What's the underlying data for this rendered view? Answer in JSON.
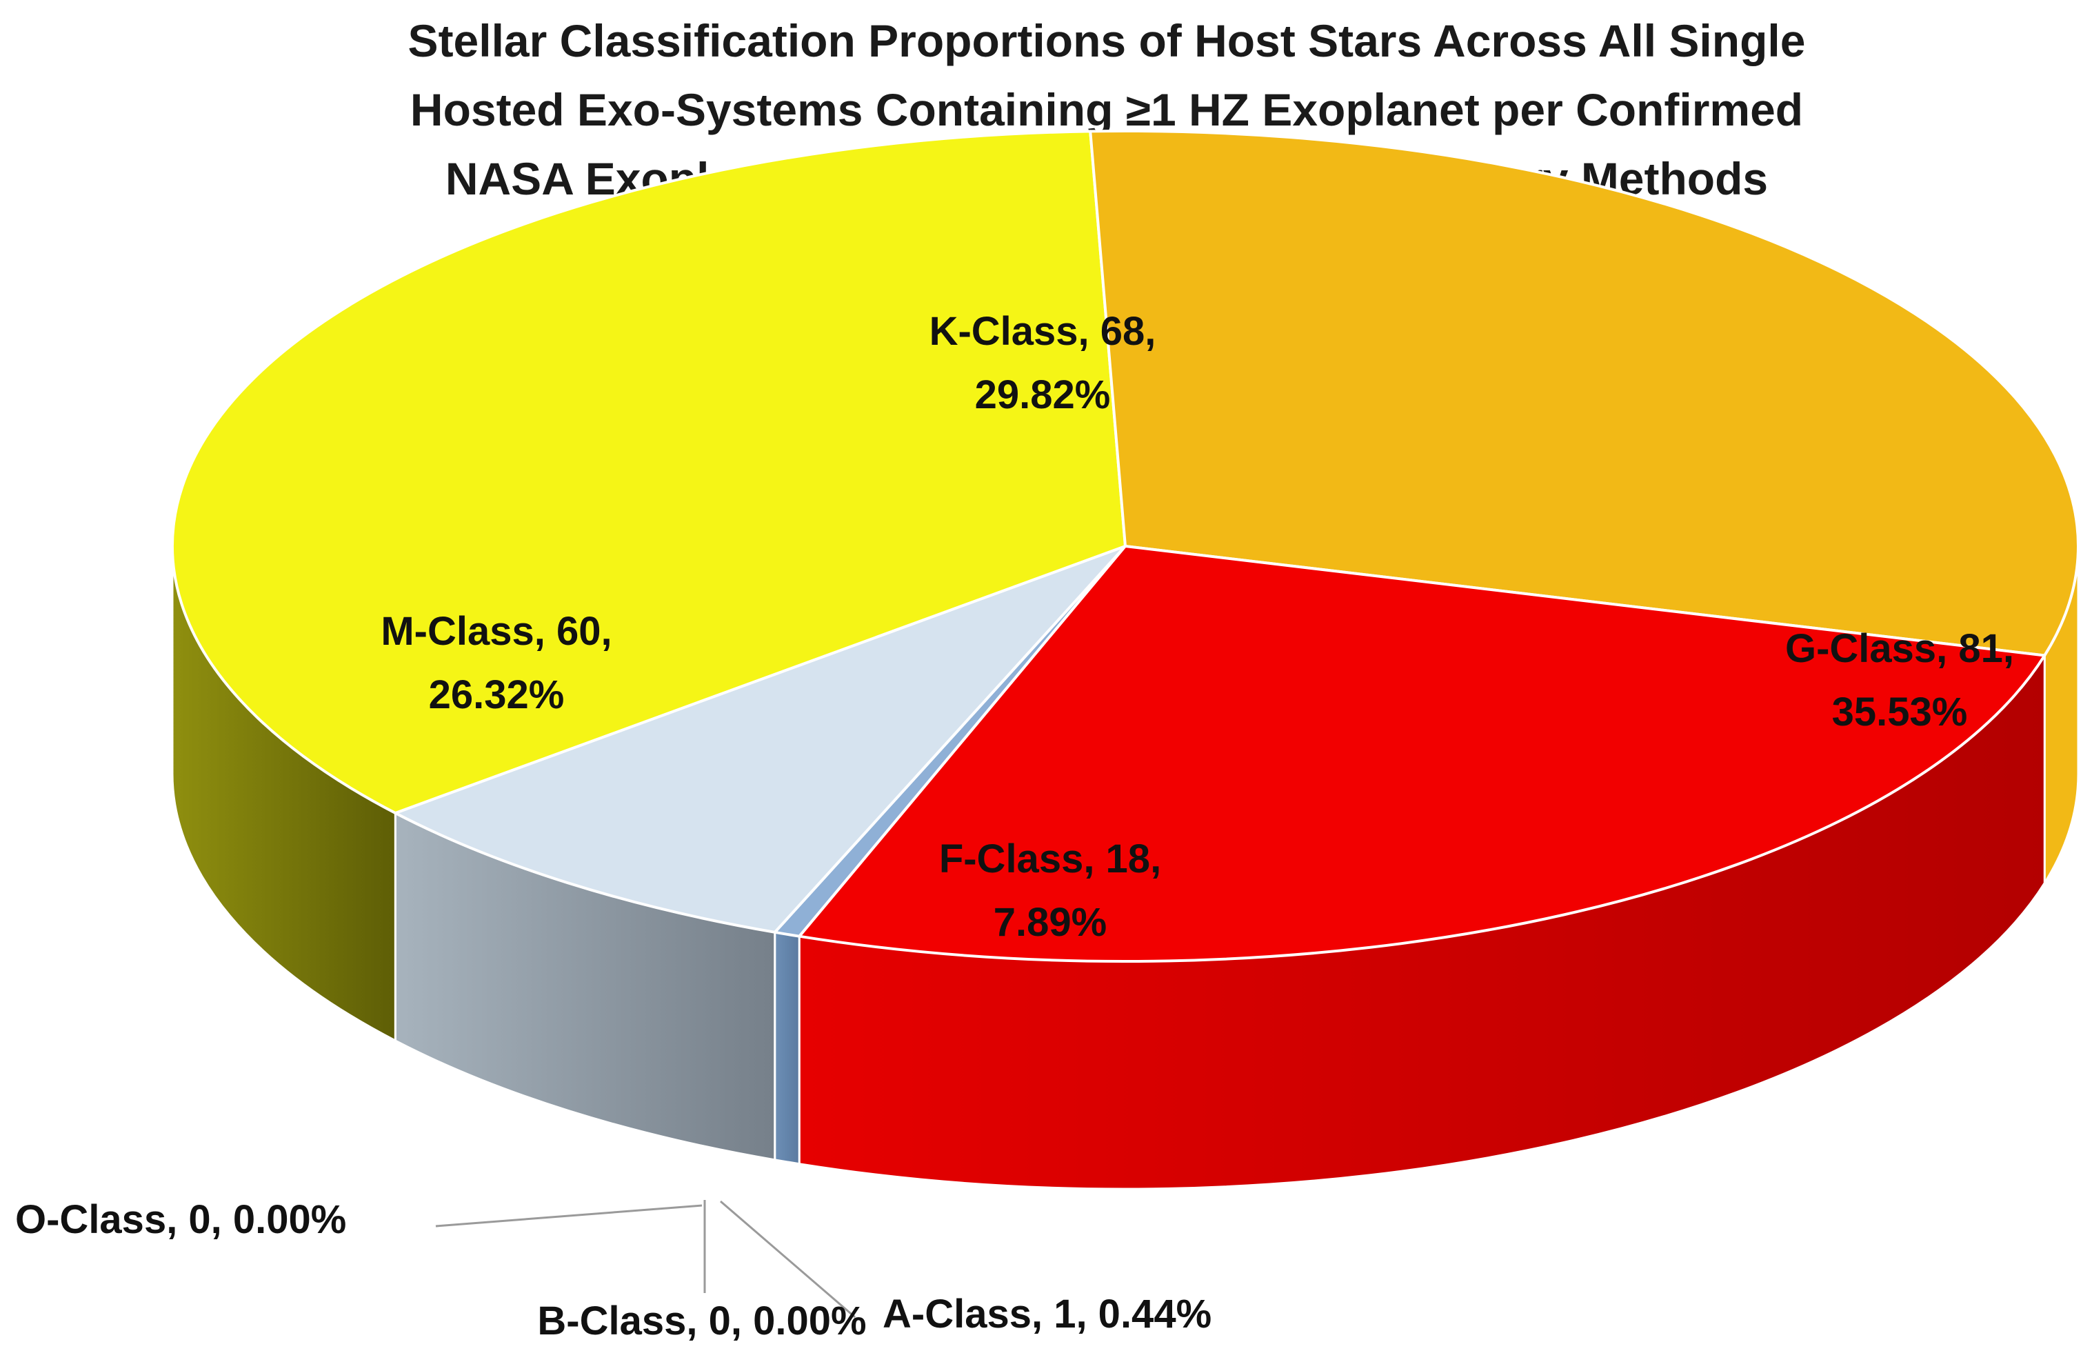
{
  "chart_data": {
    "type": "pie",
    "title_lines": [
      "Stellar Classification Proportions of Host Stars Across All Single",
      "Hosted Exo-Systems Containing ≥1 HZ Exoplanet per Confirmed",
      "NASA Exoplanet Archive (03-10-2024), All Discovery Methods"
    ],
    "slices": [
      {
        "name": "O-Class",
        "value": 0,
        "percent": "0.00%",
        "label": "O-Class, 0, 0.00%",
        "label_lines": [
          "O-Class, 0, 0.00%"
        ],
        "color": "#5b7fa8"
      },
      {
        "name": "B-Class",
        "value": 0,
        "percent": "0.00%",
        "label": "B-Class, 0, 0.00%",
        "label_lines": [
          "B-Class, 0, 0.00%"
        ],
        "color": "#6f93bd"
      },
      {
        "name": "A-Class",
        "value": 1,
        "percent": "0.44%",
        "label": "A-Class, 1, 0.44%",
        "label_lines": [
          "A-Class, 1, 0.44%"
        ],
        "color": "#8fb0d6"
      },
      {
        "name": "F-Class",
        "value": 18,
        "percent": "7.89%",
        "label": "F-Class, 18, 7.89%",
        "label_lines": [
          "F-Class, 18,",
          "7.89%"
        ],
        "color": "#d6e3ef"
      },
      {
        "name": "G-Class",
        "value": 81,
        "percent": "35.53%",
        "label": "G-Class, 81, 35.53%",
        "label_lines": [
          "G-Class, 81,",
          "35.53%"
        ],
        "color": "#f5f516"
      },
      {
        "name": "K-Class",
        "value": 68,
        "percent": "29.82%",
        "label": "K-Class, 68, 29.82%",
        "label_lines": [
          "K-Class, 68,",
          "29.82%"
        ],
        "color": "#f2b916"
      },
      {
        "name": "M-Class",
        "value": 60,
        "percent": "26.32%",
        "label": "M-Class, 60, 26.32%",
        "label_lines": [
          "M-Class, 60,",
          "26.32%"
        ],
        "color": "#f20000"
      }
    ],
    "total": 228,
    "style": "3d-pie",
    "legend": "none"
  }
}
